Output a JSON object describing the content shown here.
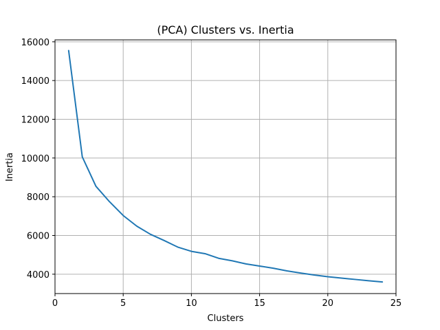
{
  "chart_data": {
    "type": "line",
    "title": "(PCA) Clusters vs. Inertia",
    "xlabel": "Clusters",
    "ylabel": "Inertia",
    "xlim": [
      0,
      25
    ],
    "ylim": [
      3000,
      16100
    ],
    "x_ticks": [
      0,
      5,
      10,
      15,
      20,
      25
    ],
    "y_ticks": [
      4000,
      6000,
      8000,
      10000,
      12000,
      14000,
      16000
    ],
    "grid": true,
    "legend": "none",
    "series": [
      {
        "color": "#1f77b4",
        "x": [
          1,
          2,
          3,
          4,
          5,
          6,
          7,
          8,
          9,
          10,
          11,
          12,
          13,
          14,
          15,
          16,
          17,
          18,
          19,
          20,
          21,
          22,
          23,
          24
        ],
        "y": [
          15550,
          10060,
          8540,
          7740,
          7030,
          6480,
          6060,
          5740,
          5400,
          5180,
          5060,
          4820,
          4690,
          4530,
          4420,
          4310,
          4170,
          4060,
          3960,
          3870,
          3800,
          3730,
          3660,
          3600
        ]
      }
    ]
  }
}
